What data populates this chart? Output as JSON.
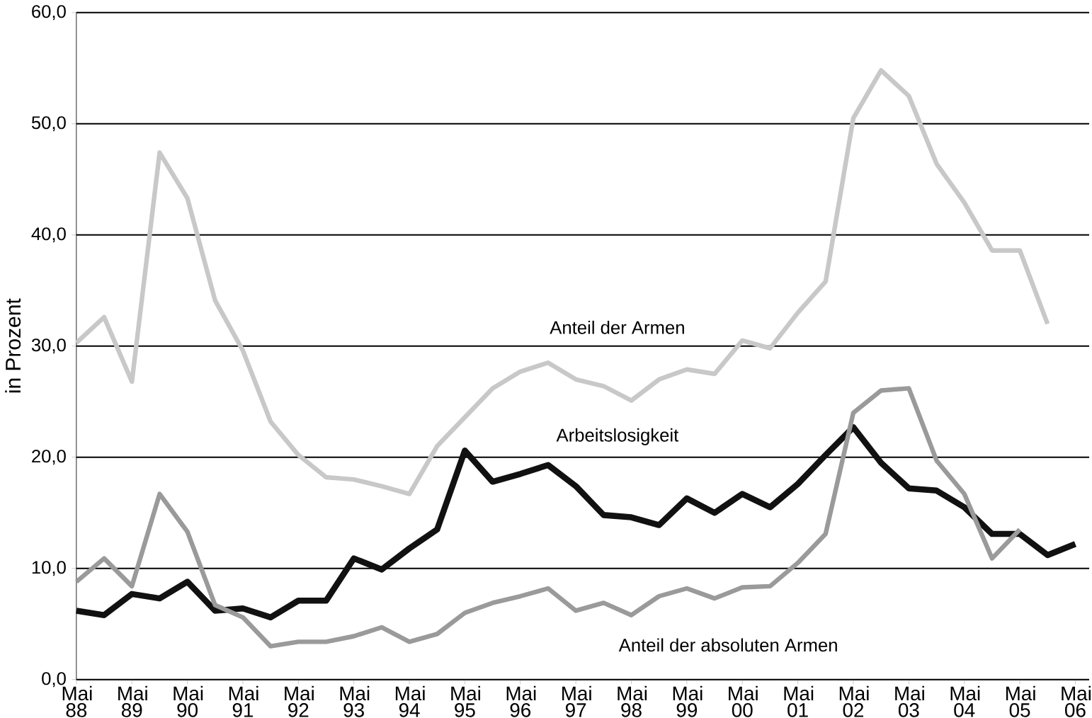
{
  "chart_data": {
    "type": "line",
    "ylabel": "in Prozent",
    "categories": [
      "Mai 88",
      null,
      "Mai 89",
      null,
      "Mai 90",
      null,
      "Mai 91",
      null,
      "Mai 92",
      null,
      "Mai 93",
      null,
      "Mai 94",
      null,
      "Mai 95",
      null,
      "Mai 96",
      null,
      "Mai 97",
      null,
      "Mai 98",
      null,
      "Mai 99",
      null,
      "Mai 00",
      null,
      "Mai 01",
      null,
      "Mai 02",
      null,
      "Mai 03",
      null,
      "Mai 04",
      null,
      "Mai 05",
      null,
      "Mai 06"
    ],
    "series": [
      {
        "name": "Anteil der Armen",
        "color": "#c8c8c8",
        "values": [
          30.3,
          32.6,
          26.8,
          47.4,
          43.3,
          34.1,
          29.6,
          23.2,
          20.2,
          18.2,
          18.0,
          17.4,
          16.7,
          21.0,
          23.6,
          26.2,
          27.7,
          28.5,
          27.0,
          26.4,
          25.1,
          27.0,
          27.9,
          27.5,
          30.5,
          29.8,
          33.0,
          35.8,
          50.5,
          54.8,
          52.5,
          46.4,
          42.9,
          38.6,
          38.6,
          32.0,
          null
        ]
      },
      {
        "name": "Arbeitslosigkeit",
        "color": "#111111",
        "values": [
          6.2,
          5.8,
          7.7,
          7.3,
          8.8,
          6.2,
          6.4,
          5.6,
          7.1,
          7.1,
          10.9,
          9.9,
          11.8,
          13.5,
          20.6,
          17.8,
          18.5,
          19.3,
          17.4,
          14.8,
          14.6,
          13.9,
          16.3,
          15.0,
          16.7,
          15.5,
          17.6,
          20.2,
          22.7,
          19.5,
          17.2,
          17.0,
          15.5,
          13.1,
          13.1,
          11.2,
          12.2
        ]
      },
      {
        "name": "Anteil der absoluten Armen",
        "color": "#9a9a9a",
        "values": [
          8.8,
          10.9,
          8.4,
          16.7,
          13.3,
          6.7,
          5.6,
          3.0,
          3.4,
          3.4,
          3.9,
          4.7,
          3.4,
          4.1,
          6.0,
          6.9,
          7.5,
          8.2,
          6.2,
          6.9,
          5.8,
          7.5,
          8.2,
          7.3,
          8.3,
          8.4,
          10.5,
          13.1,
          24.0,
          26.0,
          26.2,
          19.7,
          16.7,
          10.9,
          13.5,
          null,
          null
        ]
      }
    ],
    "ylim": [
      0,
      60
    ],
    "yticks": [
      {
        "value": 0,
        "label": "0,0"
      },
      {
        "value": 10,
        "label": "10,0"
      },
      {
        "value": 20,
        "label": "20,0"
      },
      {
        "value": 30,
        "label": "30,0"
      },
      {
        "value": 40,
        "label": "40,0"
      },
      {
        "value": 50,
        "label": "50,0"
      },
      {
        "value": 60,
        "label": "60,0"
      }
    ],
    "grid": "y",
    "legend": false,
    "marker": "none",
    "line_style": "solid"
  }
}
